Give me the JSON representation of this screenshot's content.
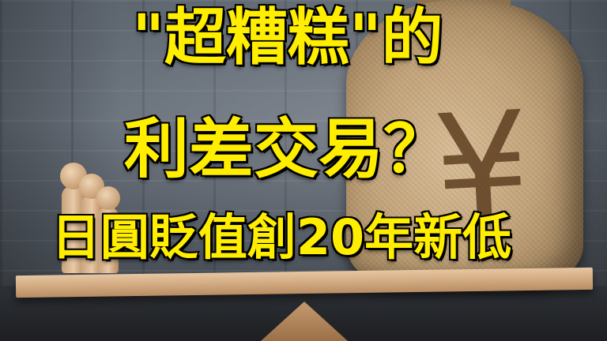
{
  "headline": {
    "line1": "\"超糟糕\"的",
    "line2": "利差交易？",
    "line3": "日圓貶值創20年新低"
  },
  "bag": {
    "symbol": "¥"
  },
  "colors": {
    "title_fill": "#ffee00",
    "title_outline": "#1a1a1a",
    "wall": "#5e6670",
    "plank": "#d4ad84",
    "bag": "#c3a47a",
    "yen_mark": "#5a3a1c"
  }
}
